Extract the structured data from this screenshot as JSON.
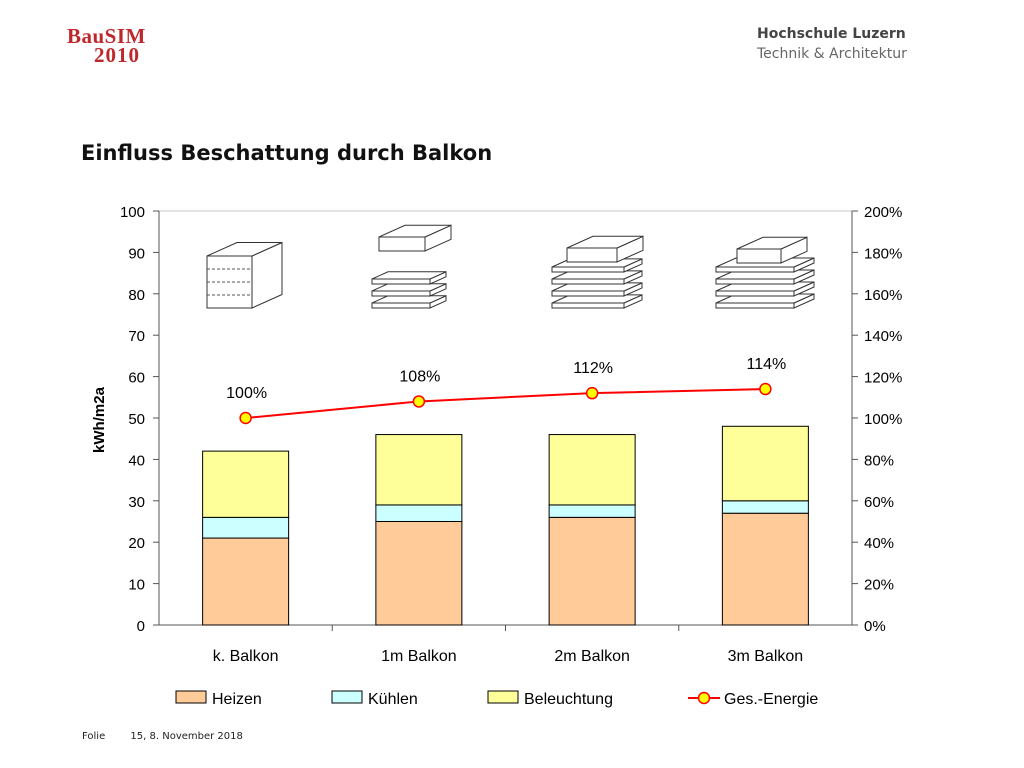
{
  "header": {
    "logo_line1": "BauSIM",
    "logo_line2": "2010",
    "institution_line1": "Hochschule Luzern",
    "institution_line2": "Technik & Architektur"
  },
  "slide": {
    "title": "Einfluss Beschattung durch Balkon"
  },
  "footer": {
    "label": "Folie",
    "page_date": "15, 8. November 2018"
  },
  "colors": {
    "heizen": "#FFCC99",
    "kuehlen": "#CCFFFF",
    "beleuchtung": "#FFFF99",
    "energie_line": "#FF0000",
    "energie_marker": "#FFFF00"
  },
  "chart_data": {
    "type": "bar",
    "stacked": true,
    "categories": [
      "k. Balkon",
      "1m Balkon",
      "2m Balkon",
      "3m Balkon"
    ],
    "series": [
      {
        "name": "Heizen",
        "values": [
          21,
          25,
          26,
          27
        ]
      },
      {
        "name": "Kühlen",
        "values": [
          5,
          4,
          3,
          3
        ]
      },
      {
        "name": "Beleuchtung",
        "values": [
          16,
          17,
          17,
          18
        ]
      }
    ],
    "line_series": {
      "name": "Ges.-Energie",
      "type": "line",
      "axis": "right",
      "values": [
        100,
        108,
        112,
        114
      ],
      "labels": [
        "100%",
        "108%",
        "112%",
        "114%"
      ]
    },
    "ylabel": "kWh/m2a",
    "ylim": [
      0,
      100
    ],
    "y_ticks": [
      "0",
      "10",
      "20",
      "30",
      "40",
      "50",
      "60",
      "70",
      "80",
      "90",
      "100"
    ],
    "y2lim": [
      0,
      200
    ],
    "y2_ticks": [
      "0%",
      "20%",
      "40%",
      "60%",
      "80%",
      "100%",
      "120%",
      "140%",
      "160%",
      "180%",
      "200%"
    ],
    "legend_position": "bottom",
    "grid": false
  }
}
